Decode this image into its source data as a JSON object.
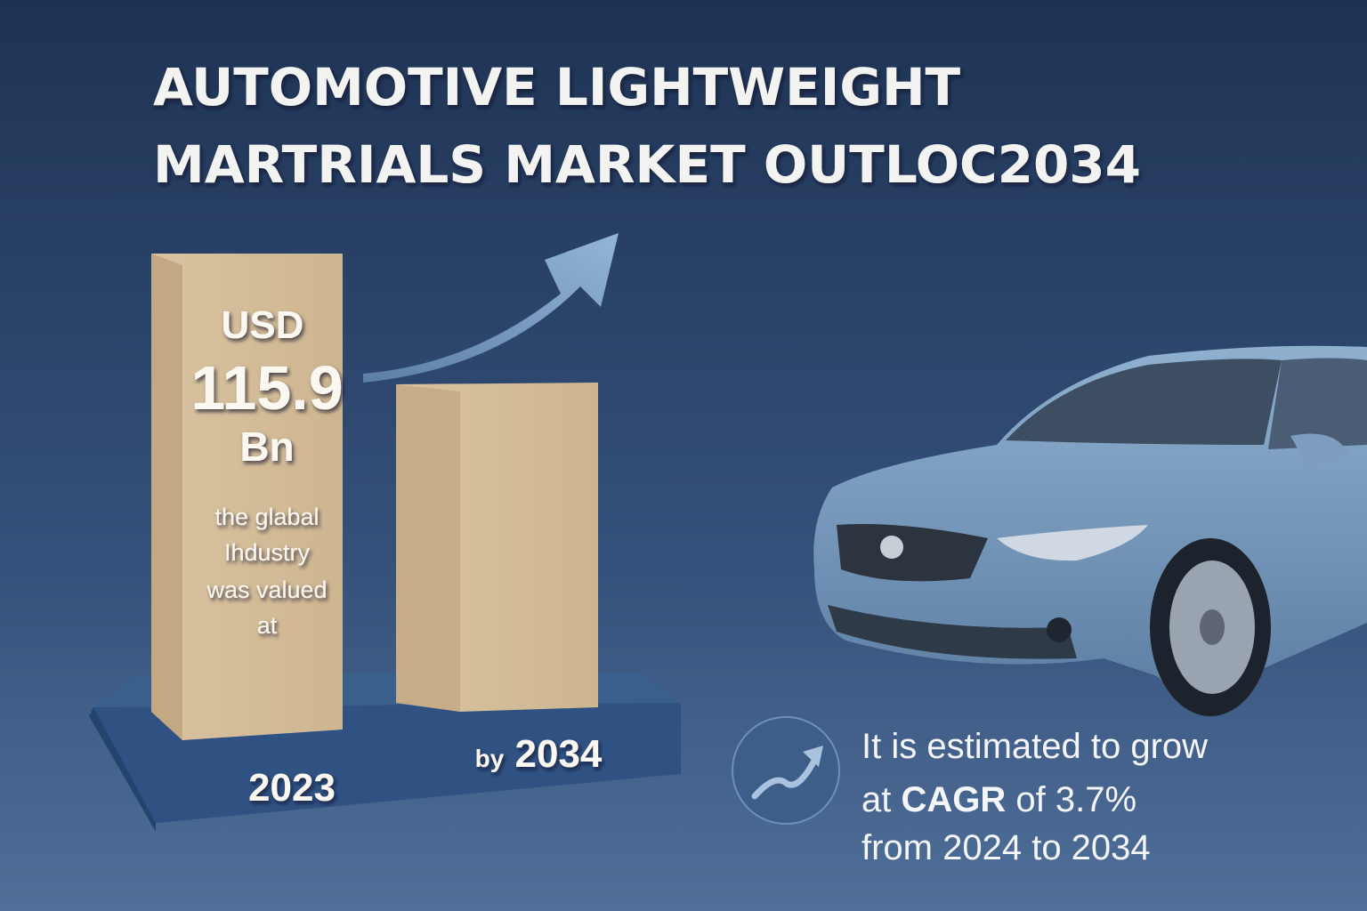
{
  "header": {
    "title_lines": [
      "AUTOMOTIVE LIGHTWEIGHT",
      "MARTRIALS MARKET OUTLOC2034"
    ]
  },
  "bar_2023": {
    "currency": "USD",
    "amount": "115.9",
    "unit": "Bn",
    "caption_lines": [
      "the glabal",
      "Ihdustry",
      "was valued",
      "at"
    ],
    "label": "2023"
  },
  "bar_2034": {
    "prefix": "by",
    "year": "2034"
  },
  "callout": {
    "line1": "It is estimated to grow",
    "line2_prefix": "at",
    "line2_emphasis": "CAGR",
    "line2_suffix": "of 3.7%",
    "line3": "from 2024 to 2034"
  }
}
